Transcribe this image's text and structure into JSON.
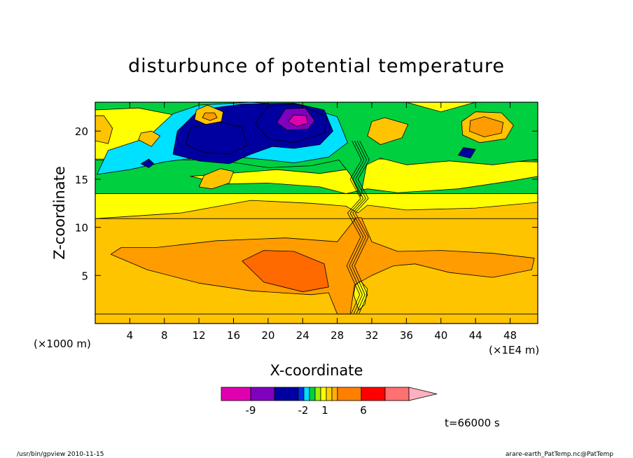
{
  "chart_data": {
    "type": "heatmap",
    "title": "disturbunce of potential temperature",
    "xlabel": "X-coordinate",
    "ylabel": "Z-coordinate",
    "x_unit_left": "(×1000 m)",
    "x_unit_right": "(×1E4 m)",
    "xlim": [
      0,
      51.2
    ],
    "ylim": [
      0,
      23
    ],
    "xticks": [
      "4",
      "8",
      "12",
      "16",
      "20",
      "24",
      "28",
      "32",
      "36",
      "40",
      "44",
      "48"
    ],
    "yticks": [
      "5",
      "10",
      "15",
      "20"
    ],
    "colorbar": {
      "colors": [
        "#e000b0",
        "#8000c0",
        "#0000a0",
        "#0030e0",
        "#00e0ff",
        "#00d040",
        "#a0f000",
        "#ffff00",
        "#ffd000",
        "#ffb000",
        "#ff8000",
        "#ff0000",
        "#ff7070",
        "#ffb0c0"
      ],
      "labels": [
        "-9",
        "-2",
        "1",
        "6"
      ]
    },
    "regions": [
      {
        "value": 2.5,
        "points": [
          [
            0,
            1
          ],
          [
            0,
            10.9
          ],
          [
            51.2,
            10.9
          ],
          [
            51.2,
            1
          ]
        ]
      },
      {
        "value": 3.5,
        "points": [
          [
            1.8,
            7.2
          ],
          [
            6,
            5.6
          ],
          [
            12,
            4.2
          ],
          [
            18,
            3.4
          ],
          [
            25,
            3.0
          ],
          [
            27,
            3.2
          ],
          [
            28,
            1
          ],
          [
            29.5,
            1
          ],
          [
            30,
            4
          ],
          [
            32,
            5
          ],
          [
            34.5,
            6
          ],
          [
            37,
            6.2
          ],
          [
            41,
            5.3
          ],
          [
            46,
            4.8
          ],
          [
            50.5,
            5.6
          ],
          [
            50.8,
            6.8
          ],
          [
            46,
            7.3
          ],
          [
            40,
            7.6
          ],
          [
            35,
            7.5
          ],
          [
            32,
            8.5
          ],
          [
            30.8,
            11
          ],
          [
            30.2,
            11
          ],
          [
            28,
            8.5
          ],
          [
            22,
            8.9
          ],
          [
            14,
            8.6
          ],
          [
            7,
            7.9
          ],
          [
            3,
            7.9
          ]
        ]
      },
      {
        "value": 5,
        "points": [
          [
            17,
            6.5
          ],
          [
            19.5,
            4.3
          ],
          [
            24,
            3.3
          ],
          [
            27,
            3.8
          ],
          [
            26.5,
            6.2
          ],
          [
            23,
            7.5
          ],
          [
            19.5,
            7.6
          ]
        ]
      },
      {
        "value": 0.5,
        "points": [
          [
            0,
            10.9
          ],
          [
            10,
            11.5
          ],
          [
            18,
            12.8
          ],
          [
            25,
            12.5
          ],
          [
            29,
            12.2
          ],
          [
            30.4,
            11.5
          ],
          [
            31.5,
            12.3
          ],
          [
            36,
            11.8
          ],
          [
            44,
            12
          ],
          [
            51.2,
            12.6
          ],
          [
            51.2,
            13.5
          ],
          [
            0,
            13.5
          ]
        ]
      },
      {
        "value": -0.5,
        "points": [
          [
            0,
            13.5
          ],
          [
            51.2,
            13.5
          ],
          [
            51.2,
            17
          ],
          [
            0,
            17
          ]
        ]
      },
      {
        "value": 0.5,
        "points": [
          [
            11,
            15.3
          ],
          [
            15,
            14.5
          ],
          [
            20,
            14.6
          ],
          [
            26,
            14.2
          ],
          [
            29,
            13.5
          ],
          [
            31.5,
            14
          ],
          [
            35,
            13.6
          ],
          [
            42,
            14
          ],
          [
            48,
            14.8
          ],
          [
            51.2,
            15.3
          ],
          [
            51.2,
            16.8
          ],
          [
            40,
            17
          ],
          [
            33,
            17.2
          ],
          [
            29,
            16
          ],
          [
            26,
            15.6
          ],
          [
            21,
            16
          ]
        ]
      },
      {
        "value": 0.5,
        "points": [
          [
            0,
            17.1
          ],
          [
            51.2,
            17.1
          ],
          [
            51.2,
            23
          ],
          [
            0,
            23
          ]
        ]
      },
      {
        "value": -0.5,
        "points": [
          [
            7,
            17.5
          ],
          [
            14,
            17
          ],
          [
            20,
            16.2
          ],
          [
            25,
            16.4
          ],
          [
            28.2,
            17
          ],
          [
            29.5,
            15.5
          ],
          [
            30.7,
            13.2
          ],
          [
            31.4,
            16.5
          ],
          [
            33,
            17.2
          ],
          [
            36,
            16.5
          ],
          [
            41,
            16.9
          ],
          [
            46,
            16.5
          ],
          [
            51.2,
            17.1
          ],
          [
            51.2,
            23
          ],
          [
            44,
            23
          ],
          [
            40,
            22
          ],
          [
            36,
            23
          ],
          [
            0,
            23
          ],
          [
            0,
            22.2
          ],
          [
            5,
            22.4
          ],
          [
            9,
            21.7
          ],
          [
            8,
            19.5
          ],
          [
            5,
            18.6
          ]
        ]
      },
      {
        "value": -1.5,
        "points": [
          [
            0.2,
            15.5
          ],
          [
            4,
            16
          ],
          [
            8,
            16.8
          ],
          [
            14,
            17.5
          ],
          [
            20,
            17
          ],
          [
            23,
            16.7
          ],
          [
            27,
            17.3
          ],
          [
            29.2,
            18.8
          ],
          [
            28,
            21.5
          ],
          [
            24,
            22.6
          ],
          [
            18,
            23
          ],
          [
            12,
            22.7
          ],
          [
            9,
            21.8
          ],
          [
            6,
            19.3
          ],
          [
            1.5,
            18
          ]
        ]
      },
      {
        "value": -2.5,
        "points": [
          [
            9,
            17.6
          ],
          [
            12,
            16.9
          ],
          [
            15.5,
            16.6
          ],
          [
            18,
            17.6
          ],
          [
            20.5,
            18.4
          ],
          [
            23,
            18.2
          ],
          [
            26,
            18.6
          ],
          [
            27.5,
            20
          ],
          [
            26.5,
            22.2
          ],
          [
            23,
            22.9
          ],
          [
            17,
            22.8
          ],
          [
            12,
            22.2
          ],
          [
            9.5,
            20
          ]
        ]
      },
      {
        "value": -4,
        "points": [
          [
            10.5,
            18.6
          ],
          [
            12.5,
            17.8
          ],
          [
            15.5,
            17.6
          ],
          [
            17.5,
            18.5
          ],
          [
            17,
            20.4
          ],
          [
            14,
            21
          ],
          [
            11,
            20.3
          ]
        ]
      },
      {
        "value": -4,
        "points": [
          [
            18.5,
            20.8
          ],
          [
            20,
            19.2
          ],
          [
            23,
            18.8
          ],
          [
            26.5,
            19.8
          ],
          [
            26.8,
            21.5
          ],
          [
            23.5,
            22.8
          ],
          [
            20,
            22.6
          ]
        ]
      },
      {
        "value": -7,
        "points": [
          [
            21,
            20.9
          ],
          [
            22.2,
            20.1
          ],
          [
            24.6,
            20.2
          ],
          [
            25.4,
            21.1
          ],
          [
            24.3,
            22.4
          ],
          [
            22,
            22.3
          ]
        ]
      },
      {
        "value": -11,
        "points": [
          [
            22.3,
            21
          ],
          [
            23.3,
            20.5
          ],
          [
            24.6,
            20.8
          ],
          [
            24.4,
            21.6
          ],
          [
            23,
            21.7
          ]
        ]
      },
      {
        "value": 2.5,
        "points": [
          [
            11.5,
            21.2
          ],
          [
            12.8,
            20.7
          ],
          [
            14.6,
            21
          ],
          [
            14.8,
            22
          ],
          [
            13,
            22.7
          ],
          [
            11.7,
            22.2
          ]
        ]
      },
      {
        "value": 3.5,
        "points": [
          [
            12.4,
            21.4
          ],
          [
            13.3,
            21.1
          ],
          [
            14.1,
            21.4
          ],
          [
            13.8,
            21.9
          ],
          [
            12.7,
            21.9
          ]
        ]
      },
      {
        "value": 2.5,
        "points": [
          [
            42.5,
            19.6
          ],
          [
            44.5,
            18.8
          ],
          [
            47.5,
            19.2
          ],
          [
            48.4,
            20.6
          ],
          [
            47,
            21.9
          ],
          [
            44,
            22
          ],
          [
            42.4,
            21
          ]
        ]
      },
      {
        "value": 3.5,
        "points": [
          [
            43.3,
            20
          ],
          [
            45,
            19.4
          ],
          [
            47,
            19.8
          ],
          [
            47.2,
            20.9
          ],
          [
            45,
            21.5
          ],
          [
            43.4,
            21.1
          ]
        ]
      },
      {
        "value": 2.5,
        "points": [
          [
            0,
            19
          ],
          [
            1.5,
            18.7
          ],
          [
            2,
            20.3
          ],
          [
            1,
            21.6
          ],
          [
            0,
            21.6
          ]
        ]
      },
      {
        "value": 2.5,
        "points": [
          [
            5,
            19.1
          ],
          [
            6.5,
            18.4
          ],
          [
            7.5,
            19.5
          ],
          [
            6.5,
            20
          ],
          [
            5.3,
            19.8
          ]
        ]
      },
      {
        "value": 2.5,
        "points": [
          [
            31.5,
            19.5
          ],
          [
            33,
            18.6
          ],
          [
            35.5,
            19.3
          ],
          [
            36.2,
            20.7
          ],
          [
            33.5,
            21.4
          ],
          [
            32,
            21
          ]
        ]
      },
      {
        "value": 2.5,
        "points": [
          [
            12,
            14.2
          ],
          [
            13.5,
            14
          ],
          [
            15.5,
            14.6
          ],
          [
            16,
            15.8
          ],
          [
            14.5,
            16.1
          ],
          [
            12.6,
            15.4
          ]
        ]
      },
      {
        "value": -2.5,
        "points": [
          [
            5.3,
            16.6
          ],
          [
            6.2,
            16.2
          ],
          [
            6.8,
            16.6
          ],
          [
            6.2,
            17.1
          ]
        ]
      },
      {
        "value": -2.5,
        "points": [
          [
            42,
            17.5
          ],
          [
            43.4,
            17.2
          ],
          [
            44,
            18.1
          ],
          [
            42.6,
            18.3
          ]
        ]
      },
      {
        "value": 0.5,
        "points": [
          [
            29.9,
            3
          ],
          [
            30.5,
            1.4
          ],
          [
            31.2,
            2
          ],
          [
            31.5,
            3.6
          ],
          [
            30.7,
            4.4
          ],
          [
            30.1,
            4
          ]
        ]
      }
    ]
  }
}
